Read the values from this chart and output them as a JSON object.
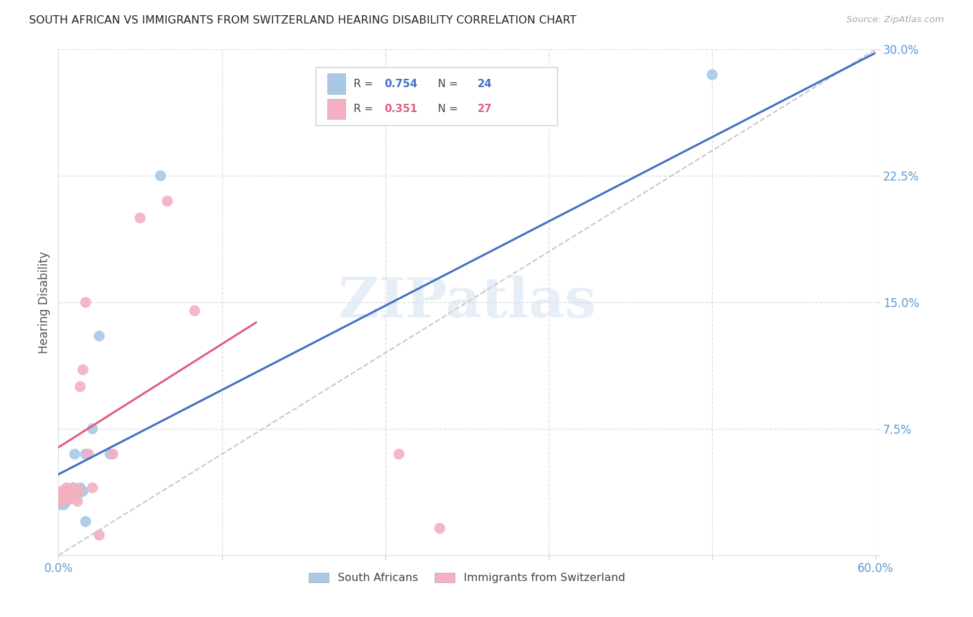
{
  "title": "SOUTH AFRICAN VS IMMIGRANTS FROM SWITZERLAND HEARING DISABILITY CORRELATION CHART",
  "source": "Source: ZipAtlas.com",
  "ylabel_label": "Hearing Disability",
  "xlim": [
    0.0,
    0.6
  ],
  "ylim": [
    0.0,
    0.3
  ],
  "xticks": [
    0.0,
    0.12,
    0.24,
    0.36,
    0.48,
    0.6
  ],
  "xtick_labels": [
    "0.0%",
    "",
    "",
    "",
    "",
    "60.0%"
  ],
  "yticks": [
    0.0,
    0.075,
    0.15,
    0.225,
    0.3
  ],
  "ytick_labels": [
    "",
    "7.5%",
    "15.0%",
    "22.5%",
    "30.0%"
  ],
  "grid_color": "#dedede",
  "background_color": "#ffffff",
  "south_africans_color": "#a8c8e8",
  "immigrants_color": "#f4b0c0",
  "south_africans_line_color": "#4472c4",
  "immigrants_line_color": "#e06080",
  "diagonal_color": "#c8c8c8",
  "legend_R1": "0.754",
  "legend_N1": "24",
  "legend_R2": "0.351",
  "legend_N2": "27",
  "watermark_text": "ZIPatlas",
  "sa_x": [
    0.002,
    0.003,
    0.004,
    0.005,
    0.006,
    0.007,
    0.008,
    0.009,
    0.01,
    0.011,
    0.012,
    0.013,
    0.014,
    0.015,
    0.016,
    0.017,
    0.018,
    0.02,
    0.022,
    0.025,
    0.03,
    0.035,
    0.075,
    0.48
  ],
  "sa_y": [
    0.04,
    0.038,
    0.036,
    0.04,
    0.038,
    0.042,
    0.038,
    0.04,
    0.042,
    0.044,
    0.038,
    0.04,
    0.036,
    0.042,
    0.038,
    0.04,
    0.044,
    0.038,
    0.075,
    0.078,
    0.13,
    0.058,
    0.225,
    0.285
  ],
  "imm_x": [
    0.001,
    0.002,
    0.003,
    0.004,
    0.005,
    0.006,
    0.007,
    0.008,
    0.009,
    0.01,
    0.011,
    0.012,
    0.013,
    0.014,
    0.015,
    0.016,
    0.017,
    0.018,
    0.02,
    0.022,
    0.025,
    0.03,
    0.035,
    0.04,
    0.06,
    0.08,
    0.25
  ],
  "imm_y": [
    0.04,
    0.042,
    0.038,
    0.044,
    0.036,
    0.042,
    0.038,
    0.04,
    0.044,
    0.038,
    0.042,
    0.036,
    0.038,
    0.04,
    0.042,
    0.1,
    0.11,
    0.15,
    0.145,
    0.036,
    0.04,
    0.012,
    0.012,
    0.06,
    0.2,
    0.21,
    0.06
  ],
  "sa_line_x": [
    0.0,
    0.6
  ],
  "sa_line_y": [
    0.048,
    0.298
  ],
  "imm_line_x": [
    0.0,
    0.14
  ],
  "imm_line_y": [
    0.064,
    0.138
  ]
}
